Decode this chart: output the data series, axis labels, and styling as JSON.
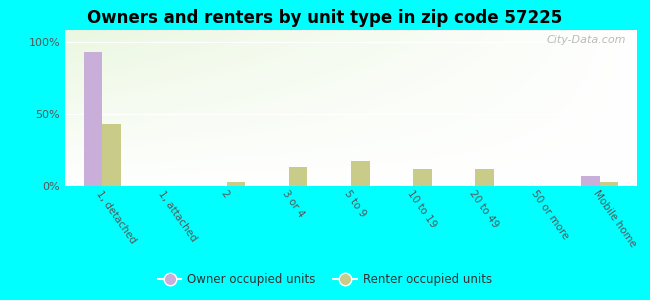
{
  "title": "Owners and renters by unit type in zip code 57225",
  "categories": [
    "1, detached",
    "1, attached",
    "2",
    "3 or 4",
    "5 to 9",
    "10 to 19",
    "20 to 49",
    "50 or more",
    "Mobile home"
  ],
  "owner_values": [
    93,
    0,
    0,
    0,
    0,
    0,
    0,
    0,
    7
  ],
  "renter_values": [
    43,
    0,
    3,
    13,
    17,
    12,
    12,
    0,
    3
  ],
  "owner_color": "#c9aed9",
  "renter_color": "#c8cc88",
  "yticks": [
    0,
    50,
    100
  ],
  "ytick_labels": [
    "0%",
    "50%",
    "100%"
  ],
  "outer_background": "#00ffff",
  "bar_width": 0.3,
  "watermark": "City-Data.com"
}
